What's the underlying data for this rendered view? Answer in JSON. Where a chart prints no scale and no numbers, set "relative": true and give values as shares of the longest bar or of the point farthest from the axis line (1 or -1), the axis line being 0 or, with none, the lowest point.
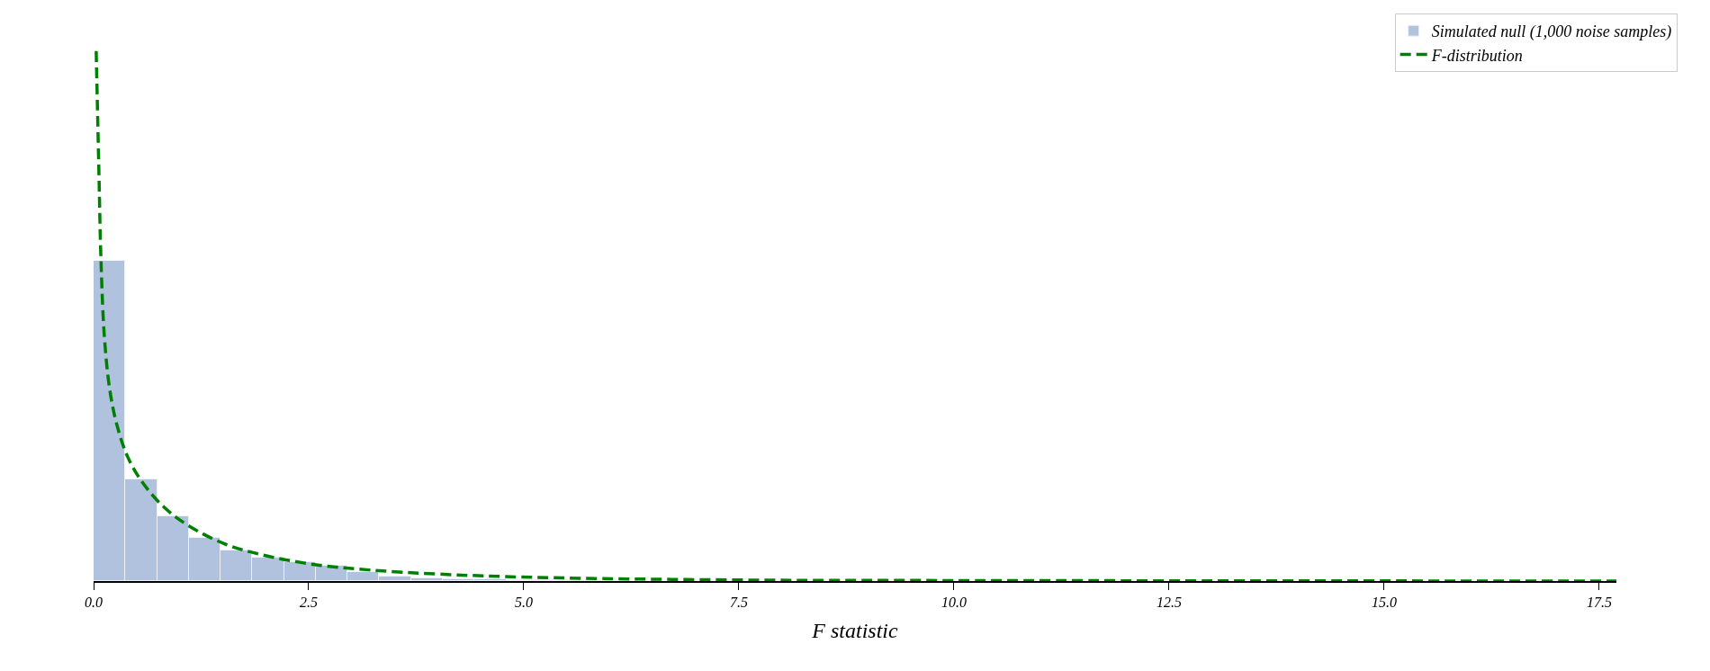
{
  "chart_data": {
    "type": "histogram",
    "xlabel": "F statistic",
    "relative": true,
    "legend": "top right",
    "xlim": [
      0,
      17.7
    ],
    "xticks": [
      {
        "value": 0,
        "label": "0.0"
      },
      2.5,
      {
        "value": 5,
        "label": "5.0"
      },
      7.5,
      {
        "value": 10,
        "label": "10.0"
      },
      12.5,
      {
        "value": 15,
        "label": "15.0"
      },
      17.5
    ],
    "bins": [
      0,
      0.369,
      0.738,
      1.107,
      1.476,
      1.845,
      2.214,
      2.583,
      2.952,
      3.321,
      3.69,
      4.059,
      4.428,
      4.797,
      5.166,
      5.535,
      5.904
    ],
    "series": [
      {
        "name": "Simulated null (1,000 noise samples)",
        "color": "#b0c2de",
        "values": [
          0.605,
          0.191,
          0.122,
          0.082,
          0.057,
          0.044,
          0.035,
          0.029,
          0.017,
          0.008,
          0.005,
          0.004,
          0.003,
          0.002,
          0.001,
          0.001
        ]
      },
      {
        "name": "F-distribution",
        "type": "line",
        "color": "#008000",
        "line_style": "dashed",
        "x": [
          0.03,
          0.063,
          0.084,
          0.125,
          0.188,
          0.272,
          0.397,
          0.564,
          0.815,
          1.108,
          1.526,
          1.944,
          2.53,
          3.2,
          4.03,
          5.12,
          7.5,
          10,
          17.7
        ],
        "values": [
          1.0,
          0.763,
          0.615,
          0.462,
          0.361,
          0.294,
          0.234,
          0.187,
          0.14,
          0.104,
          0.07,
          0.05,
          0.032,
          0.021,
          0.013,
          0.007,
          0.002,
          0.001,
          0
        ]
      }
    ]
  }
}
